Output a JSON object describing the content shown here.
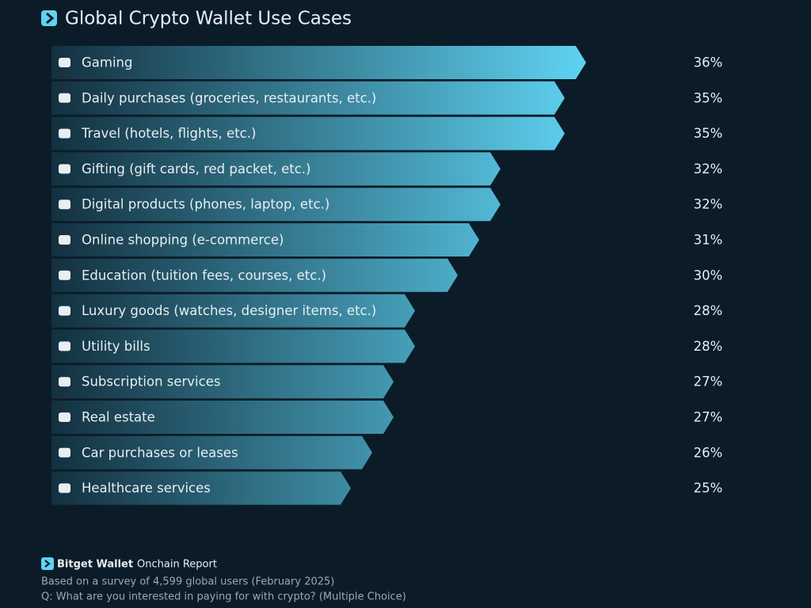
{
  "chart_data": {
    "type": "arrow-bar",
    "title": "Global Crypto Wallet Use Cases",
    "categories": [
      "Gaming",
      "Daily purchases (groceries, restaurants, etc.)",
      "Travel (hotels, flights, etc.)",
      "Gifting (gift cards, red packet, etc.)",
      "Digital products (phones, laptop, etc.)",
      "Online shopping (e-commerce)",
      "Education (tuition fees, courses, etc.)",
      "Luxury goods (watches, designer items, etc.)",
      "Utility bills",
      "Subscription services",
      "Real estate",
      "Car purchases or leases",
      "Healthcare services"
    ],
    "values": [
      36,
      35,
      35,
      32,
      32,
      31,
      30,
      28,
      28,
      27,
      27,
      26,
      25
    ],
    "value_labels": [
      "36%",
      "35%",
      "35%",
      "32%",
      "32%",
      "31%",
      "30%",
      "28%",
      "28%",
      "27%",
      "27%",
      "26%",
      "25%"
    ],
    "xlim": [
      11,
      36
    ],
    "color": [
      "#13303f",
      "#5fd3f2"
    ],
    "brand": "Bitget Wallet",
    "report": "Onchain Report",
    "source": "Based on a survey of 4,599 global users (February 2025)",
    "question": "Q: What are you interested in paying for with crypto? (Multiple Choice)"
  }
}
